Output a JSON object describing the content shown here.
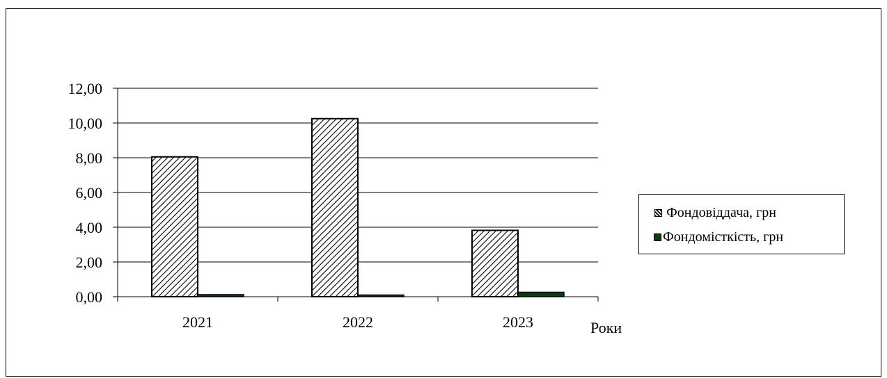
{
  "chart_data": {
    "type": "bar",
    "categories": [
      "2021",
      "2022",
      "2023"
    ],
    "series": [
      {
        "name": "Фондовіддача, грн",
        "values": [
          8.05,
          10.25,
          3.82
        ],
        "color": "#ffffff",
        "pattern": "diagonal-hatch"
      },
      {
        "name": "Фондомісткість, грн",
        "values": [
          0.12,
          0.1,
          0.26
        ],
        "color": "#0b3d12",
        "pattern": "solid"
      }
    ],
    "xlabel": "Роки",
    "ylabel": "",
    "ylim": [
      0,
      12
    ],
    "yticks": [
      "0,00",
      "2,00",
      "4,00",
      "6,00",
      "8,00",
      "10,00",
      "12,00"
    ],
    "grid": true,
    "legend_position": "right"
  },
  "legend": {
    "items": [
      "Фондовіддача, грн",
      "Фондомісткість, грн"
    ]
  }
}
